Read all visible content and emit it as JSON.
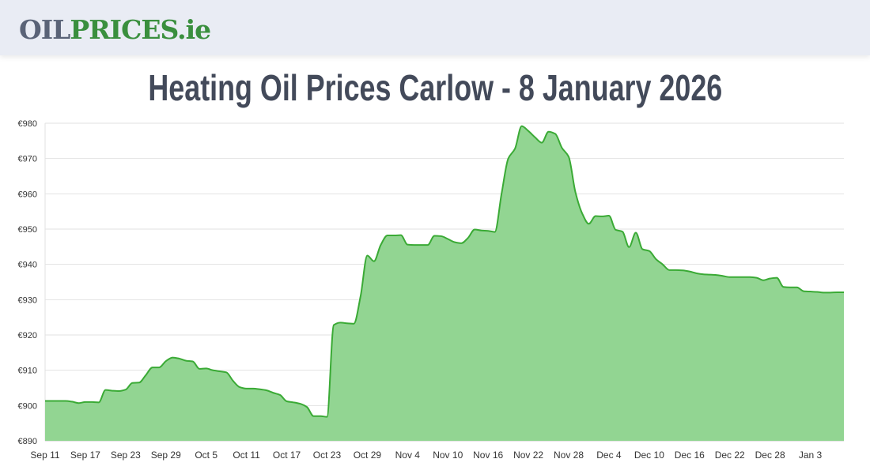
{
  "header": {
    "logo_oil": "OIL",
    "logo_prices": "PRICES.ie"
  },
  "page_title": "Heating Oil Prices Carlow - 8 January 2026",
  "colors": {
    "line": "#3aaa35",
    "fill": "#92d592",
    "grid": "#e2e2e2",
    "title": "#434a5a",
    "logo_gray": "#5a6377",
    "logo_green": "#3a8f3e"
  },
  "chart_data": {
    "type": "area",
    "title": "Heating Oil Prices Carlow - 8 January 2026",
    "xlabel": "",
    "ylabel": "",
    "ylim": [
      890,
      980
    ],
    "y_ticks": [
      "€890",
      "€900",
      "€910",
      "€920",
      "€930",
      "€940",
      "€950",
      "€960",
      "€970",
      "€980"
    ],
    "x_ticks": [
      "Sep 11",
      "Sep 17",
      "Sep 23",
      "Sep 29",
      "Oct 5",
      "Oct 11",
      "Oct 17",
      "Oct 23",
      "Oct 29",
      "Nov 4",
      "Nov 10",
      "Nov 16",
      "Nov 22",
      "Nov 28",
      "Dec 4",
      "Dec 10",
      "Dec 16",
      "Dec 22",
      "Dec 28",
      "Jan 3"
    ],
    "grid": true,
    "legend": "none",
    "x": [
      "2025-09-11",
      "2025-09-12",
      "2025-09-13",
      "2025-09-14",
      "2025-09-15",
      "2025-09-16",
      "2025-09-17",
      "2025-09-18",
      "2025-09-19",
      "2025-09-20",
      "2025-09-21",
      "2025-09-22",
      "2025-09-23",
      "2025-09-24",
      "2025-09-25",
      "2025-09-26",
      "2025-09-27",
      "2025-09-28",
      "2025-09-29",
      "2025-09-30",
      "2025-10-01",
      "2025-10-02",
      "2025-10-03",
      "2025-10-04",
      "2025-10-05",
      "2025-10-06",
      "2025-10-07",
      "2025-10-08",
      "2025-10-09",
      "2025-10-10",
      "2025-10-11",
      "2025-10-12",
      "2025-10-13",
      "2025-10-14",
      "2025-10-15",
      "2025-10-16",
      "2025-10-17",
      "2025-10-18",
      "2025-10-19",
      "2025-10-20",
      "2025-10-21",
      "2025-10-22",
      "2025-10-23",
      "2025-10-24",
      "2025-10-25",
      "2025-10-26",
      "2025-10-27",
      "2025-10-28",
      "2025-10-29",
      "2025-10-30",
      "2025-10-31",
      "2025-11-01",
      "2025-11-02",
      "2025-11-03",
      "2025-11-04",
      "2025-11-05",
      "2025-11-06",
      "2025-11-07",
      "2025-11-08",
      "2025-11-09",
      "2025-11-10",
      "2025-11-11",
      "2025-11-12",
      "2025-11-13",
      "2025-11-14",
      "2025-11-15",
      "2025-11-16",
      "2025-11-17",
      "2025-11-18",
      "2025-11-19",
      "2025-11-20",
      "2025-11-21",
      "2025-11-22",
      "2025-11-23",
      "2025-11-24",
      "2025-11-25",
      "2025-11-26",
      "2025-11-27",
      "2025-11-28",
      "2025-11-29",
      "2025-11-30",
      "2025-12-01",
      "2025-12-02",
      "2025-12-03",
      "2025-12-04",
      "2025-12-05",
      "2025-12-06",
      "2025-12-07",
      "2025-12-08",
      "2025-12-09",
      "2025-12-10",
      "2025-12-11",
      "2025-12-12",
      "2025-12-13",
      "2025-12-14",
      "2025-12-15",
      "2025-12-16",
      "2025-12-17",
      "2025-12-18",
      "2025-12-19",
      "2025-12-20",
      "2025-12-21",
      "2025-12-22",
      "2025-12-23",
      "2025-12-24",
      "2025-12-25",
      "2025-12-26",
      "2025-12-27",
      "2025-12-28",
      "2025-12-29",
      "2025-12-30",
      "2025-12-31",
      "2026-01-01",
      "2026-01-02",
      "2026-01-03",
      "2026-01-04",
      "2026-01-05",
      "2026-01-06",
      "2026-01-07",
      "2026-01-08"
    ],
    "series": [
      {
        "values": [
          901.3,
          901.3,
          901.3,
          901.3,
          901.1,
          900.7,
          901.0,
          901.0,
          900.9,
          904.4,
          904.2,
          904.1,
          904.5,
          906.4,
          906.5,
          908.6,
          910.8,
          910.8,
          912.6,
          913.6,
          913.3,
          912.7,
          912.5,
          910.4,
          910.5,
          910.0,
          909.7,
          909.4,
          907.0,
          905.2,
          904.8,
          904.8,
          904.6,
          904.3,
          903.6,
          903.0,
          901.2,
          900.9,
          900.5,
          899.6,
          897.0,
          897.0,
          896.8,
          922.8,
          923.5,
          923.3,
          923.2,
          931.0,
          942.5,
          940.9,
          945.5,
          948.2,
          948.2,
          948.3,
          945.6,
          945.5,
          945.5,
          945.5,
          948.1,
          948.0,
          947.2,
          946.3,
          946.0,
          947.5,
          949.9,
          949.6,
          949.5,
          949.2,
          960.0,
          970.0,
          972.8,
          979.2,
          977.8,
          976.0,
          974.5,
          977.6,
          977.0,
          973.0,
          970.5,
          960.5,
          954.5,
          951.5,
          953.7,
          953.6,
          953.8,
          949.8,
          949.3,
          944.9,
          949.0,
          944.3,
          943.8,
          941.5,
          940.0,
          938.4,
          938.4,
          938.3,
          938.0,
          937.5,
          937.2,
          937.1,
          937.0,
          936.7,
          936.4,
          936.4,
          936.4,
          936.4,
          936.2,
          935.5,
          936.0,
          936.2,
          933.6,
          933.5,
          933.5,
          932.4,
          932.3,
          932.2,
          932.0,
          932.0,
          932.1,
          932.1
        ]
      }
    ]
  }
}
